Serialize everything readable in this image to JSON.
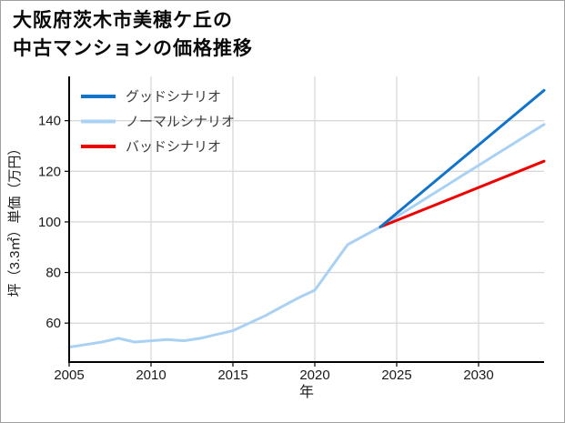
{
  "title": {
    "line1": "大阪府茨木市美穂ケ丘の",
    "line2": "中古マンションの価格推移"
  },
  "chart_data": {
    "type": "line",
    "title": "大阪府茨木市美穂ケ丘の中古マンションの価格推移",
    "xlabel": "年",
    "ylabel": "坪（3.3㎡）単価（万円）",
    "xlim": [
      2005,
      2034
    ],
    "ylim": [
      44.6,
      157.5
    ],
    "x_ticks": [
      2005,
      2010,
      2015,
      2020,
      2025,
      2030
    ],
    "y_ticks": [
      60,
      80,
      100,
      120,
      140
    ],
    "grid": true,
    "grid_color": "#d9d9d9",
    "axis_color": "#000000",
    "tick_label_color": "#1a1a1a",
    "legend_text_color": "#3a3a3a",
    "legend_position": "upper-left",
    "legend": [
      "グッドシナリオ",
      "ノーマルシナリオ",
      "バッドシナリオ"
    ],
    "series": [
      {
        "key": "normal",
        "name": "ノーマルシナリオ",
        "color": "#a9d1f4",
        "x": [
          2005,
          2006,
          2007,
          2008,
          2009,
          2010,
          2011,
          2012,
          2013,
          2014,
          2015,
          2016,
          2017,
          2018,
          2019,
          2020,
          2021,
          2022,
          2023,
          2024,
          2025,
          2026,
          2027,
          2028,
          2029,
          2030,
          2031,
          2032,
          2033,
          2034
        ],
        "values": [
          50.5,
          51.5,
          52.5,
          54,
          52.5,
          53,
          53.5,
          53,
          54,
          55.5,
          57,
          60,
          63,
          66.5,
          70,
          73,
          82,
          91,
          94.5,
          98,
          102.1,
          106.1,
          110.2,
          114.2,
          118.3,
          122.3,
          126.4,
          130.4,
          134.5,
          138.5
        ]
      },
      {
        "key": "bad",
        "name": "バッドシナリオ",
        "color": "#ef0000",
        "x": [
          2024,
          2034
        ],
        "values": [
          98,
          124
        ]
      },
      {
        "key": "good",
        "name": "グッドシナリオ",
        "color": "#1274c8",
        "x": [
          2024,
          2034
        ],
        "values": [
          98,
          152
        ]
      }
    ]
  }
}
